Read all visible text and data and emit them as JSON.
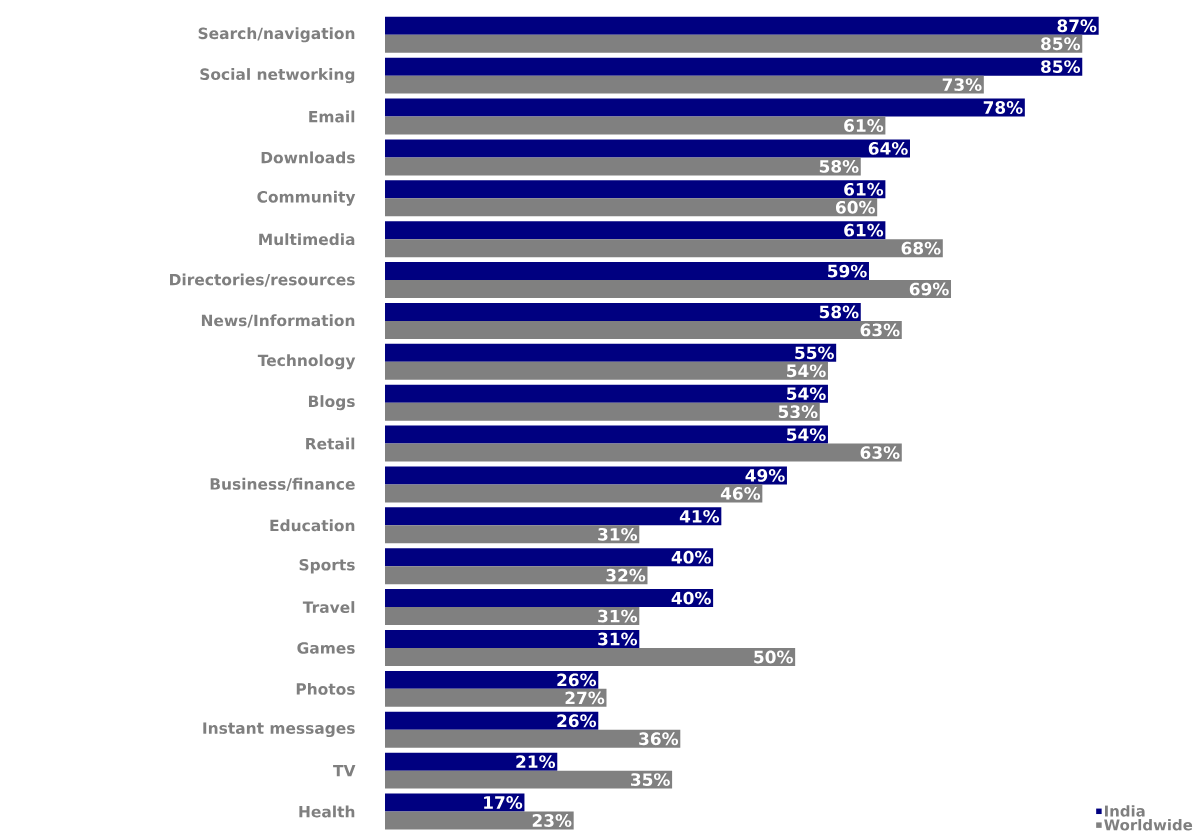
{
  "chart_data": {
    "type": "bar",
    "orientation": "horizontal",
    "categories": [
      "Search/navigation",
      "Social networking",
      "Email",
      "Downloads",
      "Community",
      "Multimedia",
      "Directories/resources",
      "News/Information",
      "Technology",
      "Blogs",
      "Retail",
      "Business/finance",
      "Education",
      "Sports",
      "Travel",
      "Games",
      "Photos",
      "Instant messages",
      "TV",
      "Health"
    ],
    "series": [
      {
        "name": "India",
        "color": "#000080",
        "values": [
          87,
          85,
          78,
          64,
          61,
          61,
          59,
          58,
          55,
          54,
          54,
          49,
          41,
          40,
          40,
          31,
          26,
          26,
          21,
          17
        ],
        "value_labels": [
          "87%",
          "85%",
          "78%",
          "64%",
          "61%",
          "61%",
          "59%",
          "58%",
          "55%",
          "54%",
          "54%",
          "49%",
          "41%",
          "40%",
          "40%",
          "31%",
          "26%",
          "26%",
          "21%",
          "17%"
        ]
      },
      {
        "name": "Worldwide",
        "color": "#808080",
        "values": [
          85,
          73,
          61,
          58,
          60,
          68,
          69,
          63,
          54,
          53,
          63,
          46,
          31,
          32,
          31,
          50,
          27,
          36,
          35,
          23
        ],
        "value_labels": [
          "85%",
          "73%",
          "61%",
          "58%",
          "60%",
          "68%",
          "69%",
          "63%",
          "54%",
          "53%",
          "63%",
          "46%",
          "31%",
          "32%",
          "31%",
          "50%",
          "27%",
          "36%",
          "35%",
          "23%"
        ]
      }
    ],
    "legend": "bottom right"
  }
}
